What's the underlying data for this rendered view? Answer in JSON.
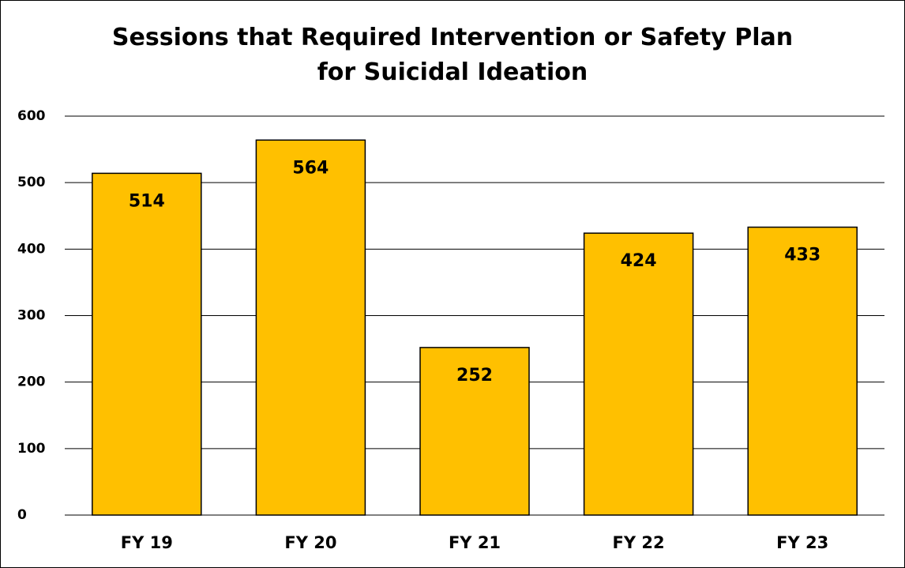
{
  "chart_data": {
    "type": "bar",
    "title": "Sessions that Required Intervention or Safety Plan for Suicidal Ideation",
    "categories": [
      "FY 19",
      "FY 20",
      "FY 21",
      "FY 22",
      "FY 23"
    ],
    "values": [
      514,
      564,
      252,
      424,
      433
    ],
    "color": "#ffc000",
    "ylim": [
      0,
      600
    ],
    "yticks": [
      0,
      100,
      200,
      300,
      400,
      500,
      600
    ],
    "grid": true
  }
}
